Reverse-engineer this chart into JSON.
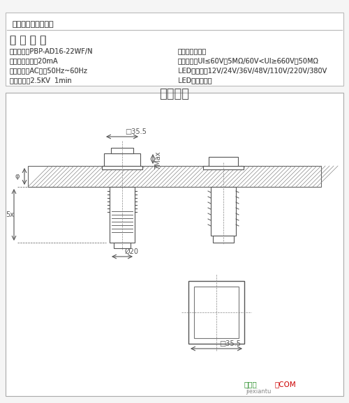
{
  "bg_color": "#f5f5f5",
  "border_color": "#cccccc",
  "text_color": "#555555",
  "title_brand": "品牌名称：德崧开关",
  "section_title": "产 品 参 数",
  "params_left": [
    "产品型号：PBP-AD16-22WF/N",
    "指示灯额定值：20mA",
    "使用频率（AC）：50Hz~60Hz",
    "工频耐压：2.5KV  1min"
  ],
  "params_right": [
    "产品材质：塑胶",
    "绝缘电阻：UI≤60V为5MΩ/60V<UI≥660V为50MΩ",
    "LED灯电压：12V/24V/36V/48V/110V/220V/380V",
    "LED灯颜色：红"
  ],
  "drawing_title": "规格图纸",
  "watermark_green": "接线图",
  "watermark_red": "．COM",
  "watermark_gray": "jiexiantu"
}
